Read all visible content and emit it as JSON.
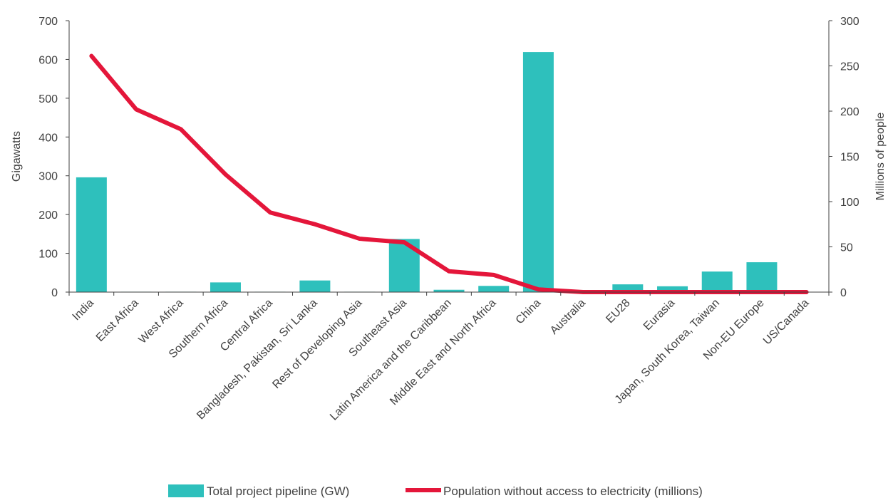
{
  "chart_data": {
    "type": "bar",
    "categories": [
      "India",
      "East Africa",
      "West Africa",
      "Southern Africa",
      "Central Africa",
      "Bangladesh, Pakistan, Sri Lanka",
      "Rest of Developing Asia",
      "Southeast Asia",
      "Latin America and the Caribbean",
      "Middle East and North Africa",
      "China",
      "Australia",
      "EU28",
      "Eurasia",
      "Japan, South Korea, Taiwan",
      "Non-EU Europe",
      "US/Canada"
    ],
    "series": [
      {
        "name": "Total project pipeline (GW)",
        "type": "bar",
        "axis": "left",
        "color": "#2ec0bc",
        "values": [
          296,
          1,
          1,
          25,
          1,
          30,
          1,
          137,
          6,
          16,
          619,
          0,
          20,
          15,
          53,
          77,
          0
        ]
      },
      {
        "name": "Population without access to electricity (millions)",
        "type": "line",
        "axis": "right",
        "color": "#e4163a",
        "values": [
          261,
          202,
          180,
          130,
          88,
          75,
          59,
          55,
          23,
          19,
          3,
          0,
          0,
          0,
          0,
          0,
          0
        ]
      }
    ],
    "ylabel": "Gigawatts",
    "ylim": [
      0,
      700
    ],
    "yticks": [
      "0",
      "100",
      "200",
      "300",
      "400",
      "500",
      "600",
      "700"
    ],
    "y2label": "Millions of people",
    "y2lim": [
      0,
      300
    ],
    "y2ticks": [
      "0",
      "50",
      "100",
      "150",
      "200",
      "250",
      "300"
    ],
    "legend_position": "bottom",
    "grid": false
  }
}
